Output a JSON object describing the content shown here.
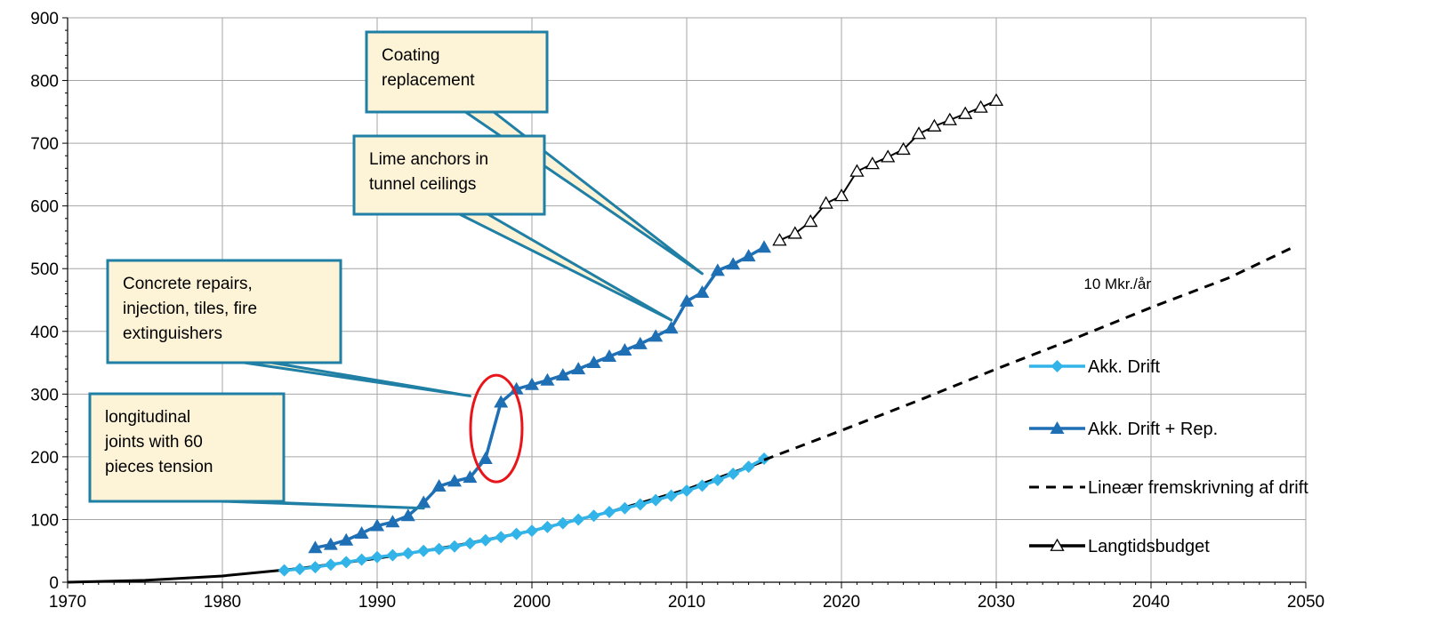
{
  "chart_data": {
    "type": "line",
    "title": "",
    "xlabel": "",
    "ylabel": "",
    "xlim": [
      1970,
      2050
    ],
    "ylim": [
      0,
      900
    ],
    "x_ticks": [
      1970,
      1980,
      1990,
      2000,
      2010,
      2020,
      2030,
      2040,
      2050
    ],
    "y_ticks": [
      0,
      100,
      200,
      300,
      400,
      500,
      600,
      700,
      800,
      900
    ],
    "grid": true,
    "legend_position": "right",
    "series": [
      {
        "name": "Akk. Drift",
        "color": "#33b4e8",
        "marker": "diamond",
        "line": "solid",
        "points": [
          [
            1984,
            19
          ],
          [
            1985,
            21
          ],
          [
            1986,
            24
          ],
          [
            1987,
            28
          ],
          [
            1988,
            32
          ],
          [
            1989,
            36
          ],
          [
            1990,
            40
          ],
          [
            1991,
            43
          ],
          [
            1992,
            46
          ],
          [
            1993,
            50
          ],
          [
            1994,
            53
          ],
          [
            1995,
            57
          ],
          [
            1996,
            62
          ],
          [
            1997,
            67
          ],
          [
            1998,
            72
          ],
          [
            1999,
            77
          ],
          [
            2000,
            82
          ],
          [
            2001,
            88
          ],
          [
            2002,
            94
          ],
          [
            2003,
            100
          ],
          [
            2004,
            106
          ],
          [
            2005,
            112
          ],
          [
            2006,
            118
          ],
          [
            2007,
            124
          ],
          [
            2008,
            131
          ],
          [
            2009,
            138
          ],
          [
            2010,
            146
          ],
          [
            2011,
            154
          ],
          [
            2012,
            163
          ],
          [
            2013,
            173
          ],
          [
            2014,
            184
          ],
          [
            2015,
            197
          ]
        ]
      },
      {
        "name": "Akk. Drift + Rep.",
        "color": "#1f6fb5",
        "marker": "triangle",
        "line": "solid",
        "points": [
          [
            1986,
            55
          ],
          [
            1987,
            60
          ],
          [
            1988,
            67
          ],
          [
            1989,
            78
          ],
          [
            1990,
            90
          ],
          [
            1991,
            96
          ],
          [
            1992,
            106
          ],
          [
            1993,
            127
          ],
          [
            1994,
            153
          ],
          [
            1995,
            161
          ],
          [
            1996,
            167
          ],
          [
            1997,
            197
          ],
          [
            1998,
            287
          ],
          [
            1999,
            308
          ],
          [
            2000,
            315
          ],
          [
            2001,
            322
          ],
          [
            2002,
            330
          ],
          [
            2003,
            340
          ],
          [
            2004,
            350
          ],
          [
            2005,
            360
          ],
          [
            2006,
            370
          ],
          [
            2007,
            380
          ],
          [
            2008,
            392
          ],
          [
            2009,
            405
          ],
          [
            2010,
            448
          ],
          [
            2011,
            462
          ],
          [
            2012,
            497
          ],
          [
            2013,
            507
          ],
          [
            2014,
            520
          ],
          [
            2015,
            534
          ]
        ]
      },
      {
        "name": "Lineær fremskrivning af drift",
        "color": "#000000",
        "marker": "none",
        "line": "dashed",
        "points": [
          [
            2015,
            195
          ],
          [
            2020,
            242
          ],
          [
            2025,
            290
          ],
          [
            2030,
            340
          ],
          [
            2035,
            388
          ],
          [
            2040,
            438
          ],
          [
            2045,
            485
          ],
          [
            2049,
            532
          ]
        ]
      },
      {
        "name": "Langtidsbudget",
        "color": "#000000",
        "marker": "triangle-open",
        "line": "solid",
        "points": [
          [
            2016,
            545
          ],
          [
            2017,
            556
          ],
          [
            2018,
            575
          ],
          [
            2019,
            604
          ],
          [
            2020,
            616
          ],
          [
            2021,
            655
          ],
          [
            2022,
            667
          ],
          [
            2023,
            678
          ],
          [
            2024,
            690
          ],
          [
            2025,
            715
          ],
          [
            2026,
            727
          ],
          [
            2027,
            737
          ],
          [
            2028,
            747
          ],
          [
            2029,
            757
          ],
          [
            2030,
            768
          ]
        ]
      }
    ],
    "trend_curve": {
      "color": "#000000",
      "points": [
        [
          1970,
          0
        ],
        [
          1975,
          3
        ],
        [
          1980,
          10
        ],
        [
          1985,
          22
        ],
        [
          1990,
          38
        ],
        [
          1995,
          58
        ],
        [
          2000,
          82
        ],
        [
          2005,
          112
        ],
        [
          2010,
          148
        ],
        [
          2015,
          193
        ]
      ]
    },
    "annotations": [
      {
        "lines": [
          "Coating",
          "replacement"
        ],
        "target": [
          2011,
          492
        ]
      },
      {
        "lines": [
          "Lime anchors in",
          "tunnel ceilings"
        ],
        "target": [
          2009,
          418
        ]
      },
      {
        "lines": [
          "Concrete repairs,",
          "injection, tiles, fire",
          "extinguishers"
        ],
        "target": [
          1996,
          297
        ]
      },
      {
        "lines": [
          "longitudinal",
          "joints with 60",
          "pieces tension"
        ],
        "target": [
          1993,
          118
        ]
      }
    ],
    "highlight_ellipse": {
      "center": [
        1997.7,
        245
      ],
      "color": "#e8151b"
    },
    "text_note": {
      "text": "10 Mkr./år",
      "position": [
        2040,
        468
      ]
    }
  }
}
